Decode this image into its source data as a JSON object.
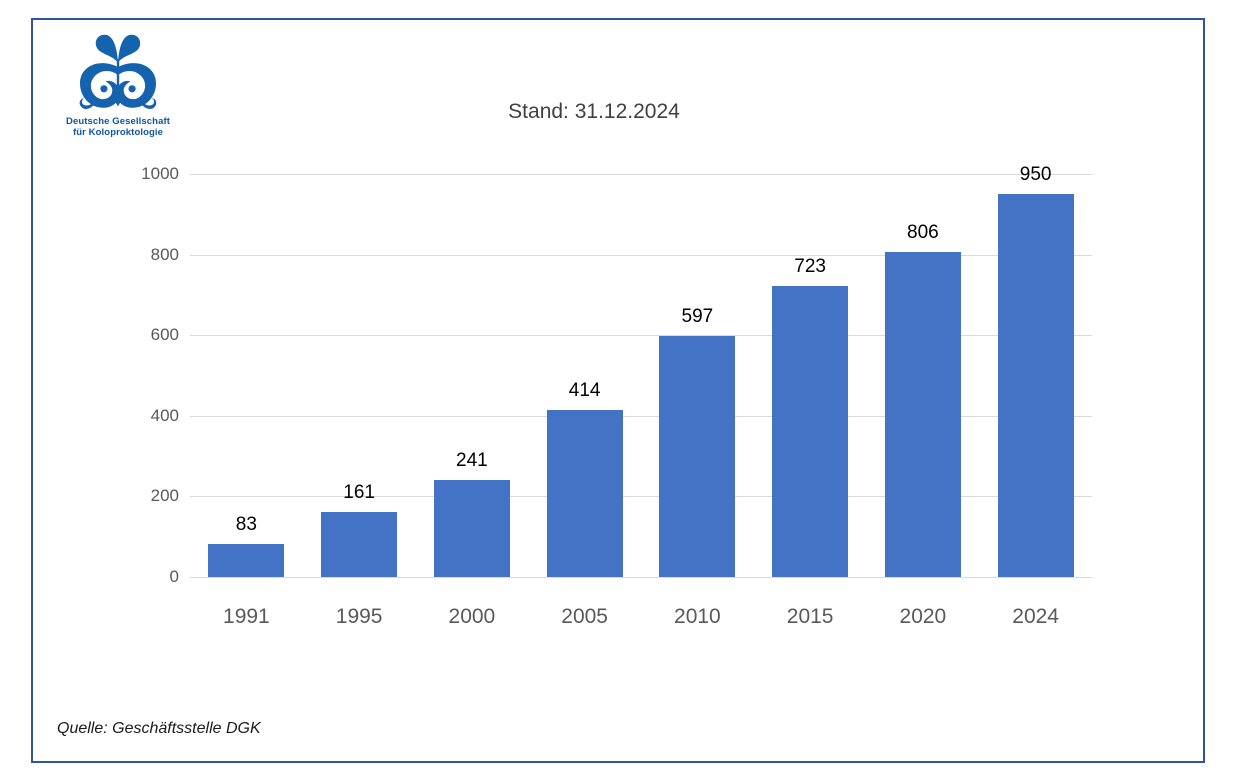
{
  "page": {
    "border_color": "#2F5597",
    "background_color": "#FFFFFF"
  },
  "logo": {
    "org_line1": "Deutsche Gesellschaft",
    "org_line2": "für Koloproktologie",
    "emblem_color": "#1563AE",
    "text_color": "#0E57A4"
  },
  "chart_data": {
    "type": "bar",
    "title": "Stand: 31.12.2024",
    "categories": [
      "1991",
      "1995",
      "2000",
      "2005",
      "2010",
      "2015",
      "2020",
      "2024"
    ],
    "values": [
      83,
      161,
      241,
      414,
      597,
      723,
      806,
      950
    ],
    "data_labels": [
      "83",
      "161",
      "241",
      "414",
      "597",
      "723",
      "806",
      "950"
    ],
    "xlabel": "",
    "ylabel": "",
    "ylim": [
      0,
      1000
    ],
    "yticks": [
      0,
      200,
      400,
      600,
      800,
      1000
    ],
    "ytick_labels": [
      "0",
      "200",
      "400",
      "600",
      "800",
      "1000"
    ],
    "grid": true,
    "legend": "none",
    "bar_color": "#4472C4",
    "gridline_color": "#D9D9D9",
    "axis_label_color": "#595959",
    "data_label_color": "#000000",
    "title_color": "#404040"
  },
  "footer": {
    "source": "Quelle: Geschäftsstelle DGK"
  }
}
